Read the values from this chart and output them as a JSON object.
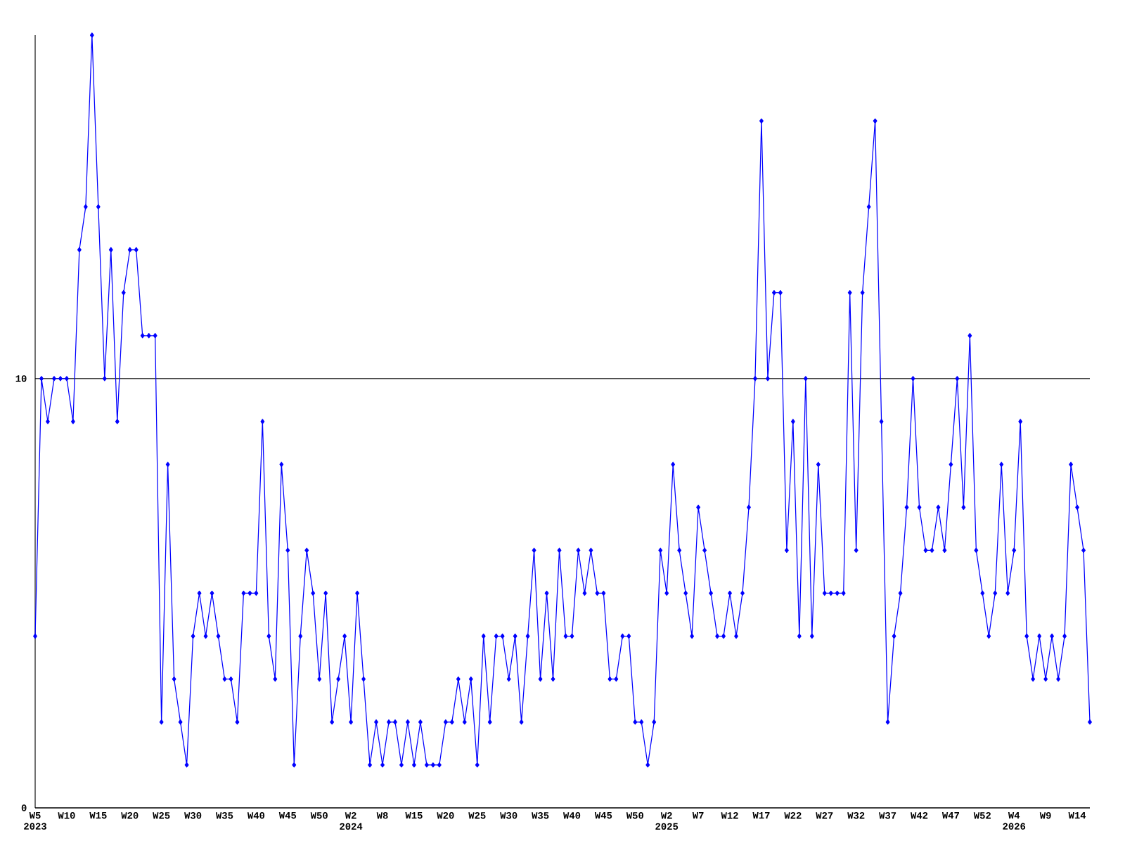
{
  "chart_data": {
    "type": "line",
    "categories": [
      "W5 2023",
      null,
      null,
      null,
      null,
      "W10",
      null,
      null,
      null,
      null,
      "W15",
      null,
      null,
      null,
      null,
      "W20",
      null,
      null,
      null,
      null,
      "W25",
      null,
      null,
      null,
      null,
      "W30",
      null,
      null,
      null,
      null,
      "W35",
      null,
      null,
      null,
      null,
      "W40",
      null,
      null,
      null,
      null,
      "W45",
      null,
      null,
      null,
      null,
      "W50",
      null,
      null,
      null,
      null,
      "W2 2024",
      null,
      null,
      null,
      null,
      "W8",
      null,
      null,
      null,
      null,
      "W15",
      null,
      null,
      null,
      null,
      "W20",
      null,
      null,
      null,
      null,
      "W25",
      null,
      null,
      null,
      null,
      "W30",
      null,
      null,
      null,
      null,
      "W35",
      null,
      null,
      null,
      null,
      "W40",
      null,
      null,
      null,
      null,
      "W45",
      null,
      null,
      null,
      null,
      "W50",
      null,
      null,
      null,
      null,
      "W2 2025",
      null,
      null,
      null,
      null,
      "W7",
      null,
      null,
      null,
      null,
      "W12",
      null,
      null,
      null,
      null,
      "W17",
      null,
      null,
      null,
      null,
      "W22",
      null,
      null,
      null,
      null,
      "W27",
      null,
      null,
      null,
      null,
      "W32",
      null,
      null,
      null,
      null,
      "W37",
      null,
      null,
      null,
      null,
      "W42",
      null,
      null,
      null,
      null,
      "W47",
      null,
      null,
      null,
      null,
      "W52",
      null,
      null,
      null,
      null,
      "W4 2026",
      null,
      null,
      null,
      null,
      "W9",
      null,
      null,
      null,
      null,
      "W14",
      null,
      null
    ],
    "values": [
      4,
      10,
      9,
      10,
      10,
      10,
      9,
      13,
      14,
      18,
      14,
      10,
      13,
      9,
      12,
      13,
      13,
      11,
      11,
      11,
      2,
      8,
      3,
      2,
      1,
      4,
      5,
      4,
      5,
      4,
      3,
      3,
      2,
      5,
      5,
      5,
      9,
      4,
      3,
      8,
      6,
      1,
      4,
      6,
      5,
      3,
      5,
      2,
      3,
      4,
      2,
      5,
      3,
      1,
      2,
      1,
      2,
      2,
      1,
      2,
      1,
      2,
      1,
      1,
      1,
      2,
      2,
      3,
      2,
      3,
      1,
      4,
      2,
      4,
      4,
      3,
      4,
      2,
      4,
      6,
      3,
      5,
      3,
      6,
      4,
      4,
      6,
      5,
      6,
      5,
      5,
      3,
      3,
      4,
      4,
      2,
      2,
      1,
      2,
      6,
      5,
      8,
      6,
      5,
      4,
      7,
      6,
      5,
      4,
      4,
      5,
      4,
      5,
      7,
      10,
      16,
      10,
      12,
      12,
      6,
      9,
      4,
      10,
      4,
      8,
      5,
      5,
      5,
      5,
      12,
      6,
      12,
      14,
      16,
      9,
      2,
      4,
      5,
      7,
      10,
      7,
      6,
      6,
      7,
      6,
      8,
      10,
      7,
      11,
      6,
      5,
      4,
      5,
      8,
      5,
      6,
      9,
      4,
      3,
      4,
      3,
      4,
      3,
      4,
      8,
      7,
      6,
      2
    ],
    "color": "#0000ff",
    "marker": "diamond",
    "line_style": "solid",
    "ylim": [
      0,
      18
    ],
    "yticks": [
      0,
      10
    ],
    "grid": "y"
  }
}
